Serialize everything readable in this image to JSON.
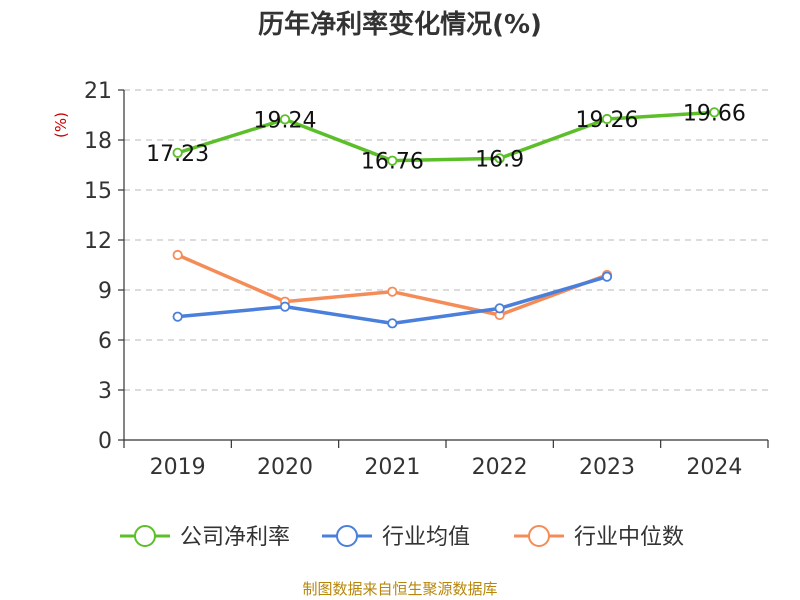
{
  "chart_data": {
    "type": "line",
    "title": "历年净利率变化情况(%)",
    "ylabel": "(%)",
    "xlabel": "",
    "categories": [
      "2019",
      "2020",
      "2021",
      "2022",
      "2023",
      "2024"
    ],
    "yticks": [
      0,
      3,
      6,
      9,
      12,
      15,
      18,
      21
    ],
    "ylim": [
      0,
      21
    ],
    "grid": true,
    "legend_position": "bottom",
    "series": [
      {
        "name": "公司净利率",
        "color": "#5cbf2a",
        "values": [
          17.23,
          19.24,
          16.76,
          16.9,
          19.26,
          19.66
        ],
        "labels": [
          "17.23",
          "19.24",
          "16.76",
          "16.9",
          "19.26",
          "19.66"
        ]
      },
      {
        "name": "行业均值",
        "color": "#4a7fdb",
        "values": [
          7.4,
          8.0,
          7.0,
          7.9,
          9.8,
          null
        ]
      },
      {
        "name": "行业中位数",
        "color": "#f58c58",
        "values": [
          11.1,
          8.3,
          8.9,
          7.5,
          9.9,
          null
        ]
      }
    ]
  },
  "source": "制图数据来自恒生聚源数据库"
}
